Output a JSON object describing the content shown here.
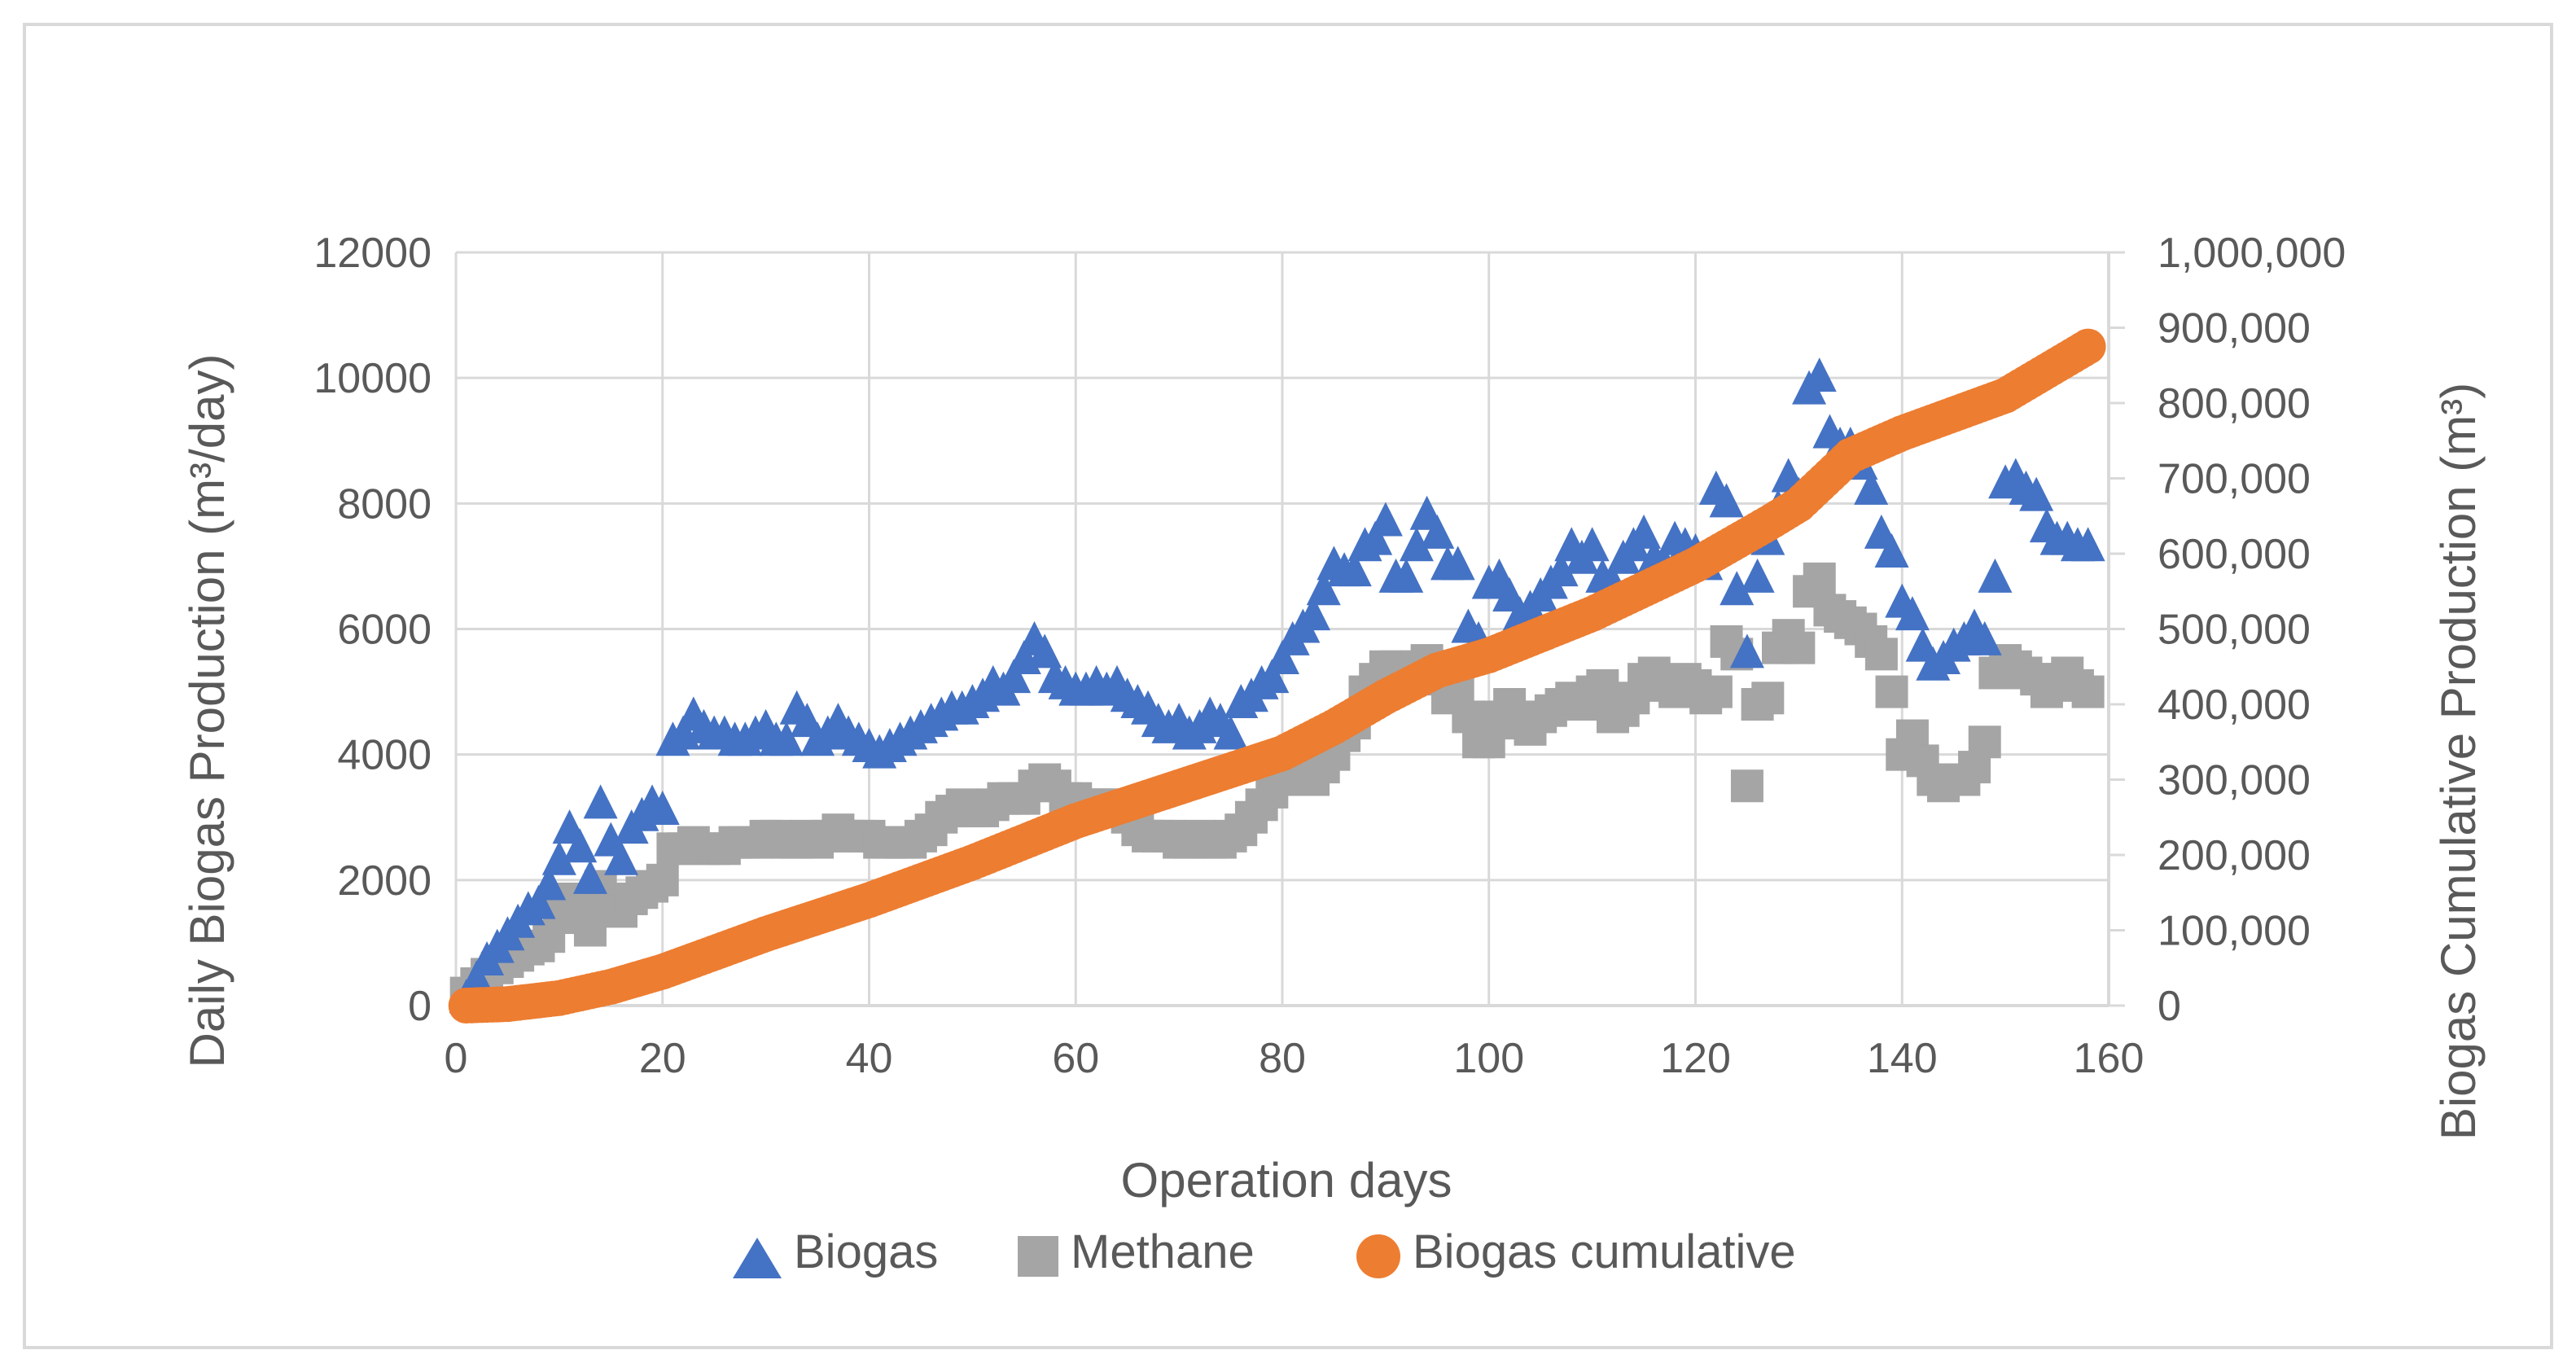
{
  "chart_data": {
    "type": "scatter",
    "title": "",
    "xlabel": "Operation days",
    "ylabel_left": "Daily Biogas Production (m³/day)",
    "ylabel_right": "Biogas Cumulative Production (m³)",
    "xlim": [
      0,
      160
    ],
    "ylim_left": [
      0,
      12000
    ],
    "ylim_right": [
      0,
      1000000
    ],
    "x_ticks": [
      "0",
      "20",
      "40",
      "60",
      "80",
      "100",
      "120",
      "140",
      "160"
    ],
    "y_left_ticks": [
      "0",
      "2000",
      "4000",
      "6000",
      "8000",
      "10000",
      "12000"
    ],
    "y_right_ticks": [
      "0",
      "100,000",
      "200,000",
      "300,000",
      "400,000",
      "500,000",
      "600,000",
      "700,000",
      "800,000",
      "900,000",
      "1,000,000"
    ],
    "grid": true,
    "legend_position": "bottom",
    "colors": {
      "biogas": "#4472C4",
      "methane": "#A5A5A5",
      "cumulative": "#ED7D31",
      "grid": "#D9D9D9",
      "text": "#595959"
    },
    "series": [
      {
        "name": "Biogas",
        "axis": "left",
        "marker": "triangle",
        "x": [
          1,
          2,
          3,
          4,
          5,
          6,
          7,
          8,
          9,
          10,
          11,
          12,
          13,
          14,
          15,
          16,
          17,
          18,
          19,
          20,
          21,
          22,
          23,
          24,
          25,
          26,
          27,
          28,
          29,
          30,
          31,
          32,
          33,
          34,
          35,
          36,
          37,
          38,
          39,
          40,
          41,
          42,
          43,
          44,
          45,
          46,
          47,
          48,
          49,
          50,
          51,
          52,
          53,
          54,
          55,
          56,
          57,
          58,
          59,
          60,
          61,
          62,
          63,
          64,
          65,
          66,
          67,
          68,
          69,
          70,
          71,
          72,
          73,
          74,
          75,
          76,
          77,
          78,
          79,
          80,
          81,
          82,
          83,
          84,
          85,
          86,
          87,
          88,
          89,
          90,
          91,
          92,
          93,
          94,
          95,
          96,
          97,
          98,
          99,
          100,
          101,
          102,
          103,
          104,
          105,
          106,
          107,
          108,
          109,
          110,
          111,
          112,
          113,
          114,
          115,
          116,
          117,
          118,
          119,
          120,
          121,
          122,
          123,
          124,
          125,
          126,
          127,
          128,
          129,
          130,
          131,
          132,
          133,
          134,
          135,
          136,
          137,
          138,
          139,
          140,
          141,
          142,
          143,
          144,
          145,
          146,
          147,
          148,
          149,
          150,
          151,
          152,
          153,
          154,
          155,
          156,
          157,
          158
        ],
        "y": [
          100,
          400,
          700,
          900,
          1100,
          1300,
          1500,
          1600,
          1900,
          2300,
          2800,
          2500,
          2000,
          3200,
          2600,
          2300,
          2800,
          3000,
          3200,
          3100,
          4200,
          4300,
          4600,
          4400,
          4300,
          4300,
          4200,
          4200,
          4300,
          4400,
          4200,
          4200,
          4700,
          4500,
          4200,
          4300,
          4500,
          4300,
          4200,
          4100,
          4000,
          4100,
          4200,
          4300,
          4400,
          4500,
          4600,
          4700,
          4700,
          4800,
          4900,
          5100,
          5000,
          5200,
          5500,
          5800,
          5600,
          5200,
          5100,
          5000,
          5000,
          5100,
          5000,
          5100,
          4900,
          4800,
          4700,
          4500,
          4400,
          4500,
          4300,
          4400,
          4600,
          4500,
          4300,
          4800,
          4900,
          5100,
          5200,
          5500,
          5800,
          6000,
          6200,
          6600,
          7000,
          6900,
          6900,
          7300,
          7400,
          7700,
          6800,
          6800,
          7300,
          7800,
          7500,
          7000,
          7000,
          6000,
          5800,
          6700,
          6800,
          6500,
          6200,
          6300,
          6500,
          6700,
          6900,
          7300,
          7100,
          7300,
          6800,
          6700,
          7100,
          7300,
          7500,
          7100,
          7000,
          7400,
          7300,
          7200,
          7000,
          8200,
          8000,
          6600,
          5600,
          6800,
          7400,
          7900,
          8400,
          8100,
          9800,
          10000,
          9100,
          8900,
          8900,
          8600,
          8200,
          7500,
          7200,
          6400,
          6200,
          5700,
          5400,
          5500,
          5700,
          5800,
          6000,
          5800,
          6800,
          8300,
          8400,
          8200,
          8100,
          7600,
          7400,
          7400,
          7300,
          7300
        ]
      },
      {
        "name": "Methane",
        "axis": "left",
        "marker": "square",
        "x": [
          1,
          2,
          3,
          4,
          5,
          6,
          7,
          8,
          9,
          10,
          11,
          12,
          13,
          14,
          15,
          16,
          17,
          18,
          19,
          20,
          21,
          22,
          23,
          24,
          25,
          26,
          27,
          28,
          29,
          30,
          31,
          32,
          33,
          34,
          35,
          36,
          37,
          38,
          39,
          40,
          41,
          42,
          43,
          44,
          45,
          46,
          47,
          48,
          49,
          50,
          51,
          52,
          53,
          54,
          55,
          56,
          57,
          58,
          59,
          60,
          61,
          62,
          63,
          64,
          65,
          66,
          67,
          68,
          69,
          70,
          71,
          72,
          73,
          74,
          75,
          76,
          77,
          78,
          79,
          80,
          81,
          82,
          83,
          84,
          85,
          86,
          87,
          88,
          89,
          90,
          91,
          92,
          93,
          94,
          95,
          96,
          97,
          98,
          99,
          100,
          101,
          102,
          103,
          104,
          105,
          106,
          107,
          108,
          109,
          110,
          111,
          112,
          113,
          114,
          115,
          116,
          117,
          118,
          119,
          120,
          121,
          122,
          123,
          124,
          125,
          126,
          127,
          128,
          129,
          130,
          131,
          132,
          133,
          134,
          135,
          136,
          137,
          138,
          139,
          140,
          141,
          142,
          143,
          144,
          145,
          146,
          147,
          148,
          149,
          150,
          151,
          152,
          153,
          154,
          155,
          156,
          157,
          158
        ],
        "y": [
          200,
          350,
          500,
          600,
          700,
          800,
          900,
          950,
          1100,
          1600,
          1700,
          1400,
          1200,
          1900,
          1600,
          1500,
          1700,
          1800,
          1900,
          2000,
          2500,
          2500,
          2600,
          2500,
          2500,
          2500,
          2600,
          2600,
          2600,
          2700,
          2700,
          2600,
          2600,
          2700,
          2600,
          2700,
          2800,
          2700,
          2700,
          2700,
          2600,
          2600,
          2600,
          2600,
          2700,
          2800,
          3000,
          3100,
          3200,
          3100,
          3100,
          3200,
          3300,
          3300,
          3300,
          3500,
          3600,
          3500,
          3300,
          3300,
          3200,
          3200,
          3200,
          3200,
          3000,
          2800,
          2700,
          2700,
          2700,
          2600,
          2600,
          2700,
          2600,
          2600,
          2700,
          2800,
          3000,
          3200,
          3400,
          3600,
          3700,
          3800,
          3600,
          3800,
          4000,
          4300,
          4500,
          5000,
          5200,
          5400,
          5400,
          5200,
          5400,
          5500,
          5200,
          4900,
          5000,
          4600,
          4200,
          4200,
          4600,
          4800,
          4500,
          4400,
          4600,
          4700,
          4800,
          4900,
          4800,
          5000,
          5100,
          4600,
          4700,
          4900,
          5200,
          5300,
          5100,
          5000,
          5200,
          5100,
          4900,
          5000,
          5800,
          5600,
          3500,
          4800,
          4900,
          5700,
          5900,
          5700,
          6600,
          6800,
          6300,
          6200,
          6100,
          6000,
          5800,
          5600,
          5000,
          4000,
          4300,
          3900,
          3600,
          3500,
          3600,
          3600,
          3800,
          4200,
          5300,
          5500,
          5400,
          5300,
          5200,
          5000,
          5200,
          5300,
          5100,
          5000
        ]
      },
      {
        "name": "Biogas cumulative",
        "axis": "right",
        "marker": "circle",
        "x": [
          1,
          5,
          10,
          15,
          20,
          30,
          40,
          50,
          60,
          70,
          80,
          85,
          90,
          95,
          100,
          110,
          120,
          127,
          130,
          135,
          140,
          150,
          158
        ],
        "y": [
          0,
          2000,
          10000,
          25000,
          45000,
          95000,
          140000,
          190000,
          245000,
          290000,
          335000,
          370000,
          410000,
          445000,
          465000,
          520000,
          585000,
          640000,
          665000,
          730000,
          760000,
          810000,
          875000
        ]
      }
    ]
  }
}
